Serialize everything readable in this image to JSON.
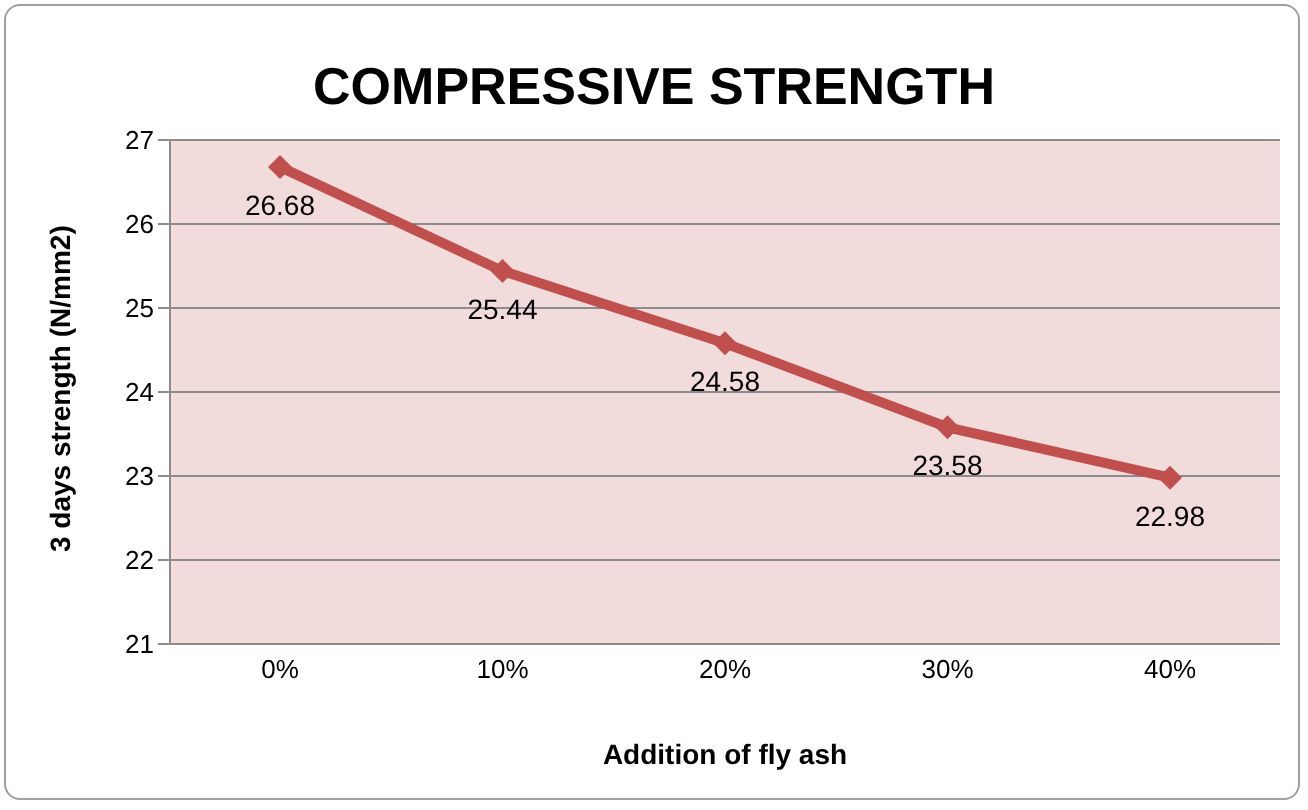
{
  "chart_data": {
    "type": "line",
    "title": "COMPRESSIVE STRENGTH",
    "xlabel": "Addition of fly ash",
    "ylabel": "3 days strength (N/mm2)",
    "categories": [
      "0%",
      "10%",
      "20%",
      "30%",
      "40%"
    ],
    "series": [
      {
        "color": "#c0504d",
        "values": [
          26.68,
          25.44,
          24.58,
          23.58,
          22.98
        ]
      }
    ],
    "ylim": [
      21,
      27
    ],
    "yticks": [
      21,
      22,
      23,
      24,
      25,
      26,
      27
    ],
    "grid": "y",
    "marker": "diamond",
    "data_labels": true
  }
}
